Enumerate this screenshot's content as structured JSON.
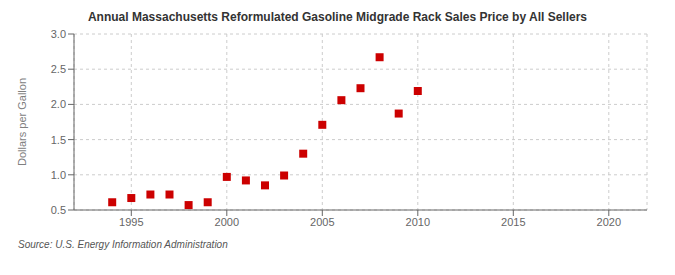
{
  "chart_data": {
    "type": "scatter",
    "title": "Annual Massachusetts Reformulated Gasoline Midgrade Rack Sales Price by All Sellers",
    "y_label": "Dollars per Gallon",
    "annotations": [
      "Source: U.S. Energy Information Administration"
    ],
    "x": [
      1994,
      1995,
      1996,
      1997,
      1998,
      1999,
      2000,
      2001,
      2002,
      2003,
      2004,
      2005,
      2006,
      2007,
      2008,
      2009,
      2010
    ],
    "values": [
      0.61,
      0.67,
      0.72,
      0.72,
      0.57,
      0.61,
      0.97,
      0.92,
      0.85,
      0.99,
      1.3,
      1.71,
      2.06,
      2.23,
      2.67,
      1.87,
      2.19
    ],
    "color": "#cc0000",
    "marker": "square",
    "xlim": [
      1992,
      2022
    ],
    "ylim": [
      0.5,
      3.0
    ],
    "xticks": [
      1995,
      2000,
      2005,
      2010,
      2015,
      2020
    ],
    "yticks": [
      0.5,
      {
        "value": 1.0,
        "label": "1.0"
      },
      1.5,
      {
        "value": 2.0,
        "label": "2.0"
      },
      2.5,
      {
        "value": 3.0,
        "label": "3.0"
      }
    ],
    "grid": true
  }
}
